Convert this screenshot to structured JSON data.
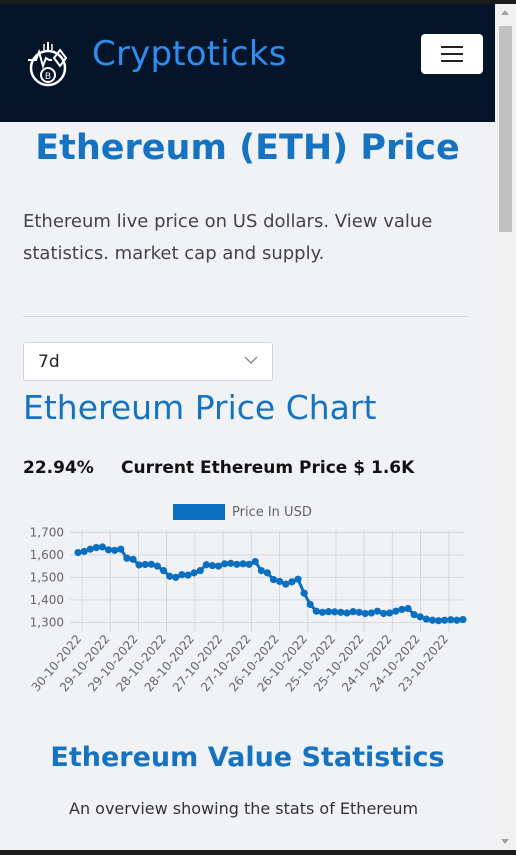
{
  "header": {
    "brand": "Cryptoticks",
    "logo_icon": "crypto-coin-logo-icon",
    "menu_icon": "hamburger-menu-icon",
    "brand_color": "#2f8df0",
    "bg_color": "#041429"
  },
  "main": {
    "title": "Ethereum (ETH) Price",
    "intro": "Ethereum live price on US dollars. View value statistics. market cap and supply.",
    "period_select": {
      "value": "7d",
      "icon": "chevron-down-icon"
    },
    "chart_heading": "Ethereum Price Chart",
    "change_percent": "22.94%",
    "current_price": "Current Ethereum Price $ 1.6K",
    "stats_heading": "Ethereum Value Statistics",
    "stats_subtitle": "An overview showing the stats of Ethereum",
    "accent_color": "#1673c1"
  },
  "chart_data": {
    "type": "line",
    "title": "",
    "legend": {
      "label": "Price In USD",
      "placement": "top-center",
      "color": "#0a6fc0"
    },
    "xlabel": "",
    "ylabel": "",
    "ylim": [
      1280,
      1710
    ],
    "y_ticks": [
      1300,
      1400,
      1500,
      1600,
      1700
    ],
    "y_tick_labels": [
      "1,300",
      "1,400",
      "1,500",
      "1,600",
      "1,700"
    ],
    "grid": true,
    "x_tick_labels": [
      "30-10-2022",
      "29-10-2022",
      "29-10-2022",
      "28-10-2022",
      "28-10-2022",
      "27-10-2022",
      "27-10-2022",
      "26-10-2022",
      "26-10-2022",
      "25-10-2022",
      "25-10-2022",
      "24-10-2022",
      "24-10-2022",
      "23-10-2022"
    ],
    "series": [
      {
        "name": "Price In USD",
        "values": [
          1610,
          1615,
          1625,
          1632,
          1635,
          1622,
          1620,
          1625,
          1585,
          1580,
          1555,
          1557,
          1558,
          1550,
          1530,
          1505,
          1500,
          1512,
          1510,
          1520,
          1530,
          1556,
          1552,
          1550,
          1560,
          1562,
          1558,
          1560,
          1558,
          1570,
          1530,
          1520,
          1490,
          1482,
          1470,
          1480,
          1492,
          1430,
          1380,
          1350,
          1345,
          1348,
          1347,
          1345,
          1342,
          1348,
          1345,
          1340,
          1342,
          1350,
          1340,
          1342,
          1350,
          1358,
          1362,
          1335,
          1325,
          1315,
          1310,
          1308,
          1310,
          1312,
          1310,
          1313
        ]
      }
    ]
  }
}
